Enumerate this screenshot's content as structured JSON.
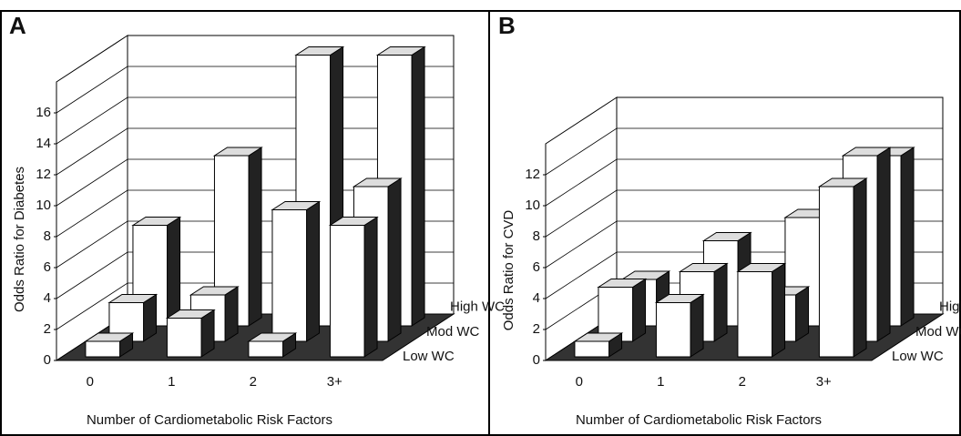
{
  "chart_data": [
    {
      "type": "bar3d",
      "panel": "A",
      "y_label": "Odds Ratio for Diabetes",
      "x_label": "Number of Cardiometabolic Risk Factors",
      "categories": [
        "0",
        "1",
        "2",
        "3+"
      ],
      "ylim": [
        0,
        18
      ],
      "yticks": [
        0,
        2,
        4,
        6,
        8,
        10,
        12,
        14,
        16
      ],
      "grid": true,
      "series": [
        {
          "name": "Low WC",
          "color": "#ffffff",
          "values": [
            1,
            2.5,
            1,
            8.5
          ]
        },
        {
          "name": "Mod WC",
          "color": "#ffffff",
          "values": [
            2.5,
            3,
            8.5,
            10
          ]
        },
        {
          "name": "High WC",
          "color": "#ffffff",
          "values": [
            6.5,
            11,
            17.5,
            17.5
          ]
        }
      ]
    },
    {
      "type": "bar3d",
      "panel": "B",
      "y_label": "Odds Ratio for CVD",
      "x_label": "Number of Cardiometabolic Risk Factors",
      "categories": [
        "0",
        "1",
        "2",
        "3+"
      ],
      "ylim": [
        0,
        14
      ],
      "yticks": [
        0,
        2,
        4,
        6,
        8,
        10,
        12
      ],
      "grid": true,
      "series": [
        {
          "name": "Low WC",
          "color": "#ffffff",
          "values": [
            1,
            3.5,
            5.5,
            11
          ]
        },
        {
          "name": "Mod WC",
          "color": "#ffffff",
          "values": [
            3.5,
            4.5,
            3,
            12
          ]
        },
        {
          "name": "High WC",
          "color": "#ffffff",
          "values": [
            3,
            5.5,
            7,
            11
          ]
        }
      ]
    }
  ]
}
